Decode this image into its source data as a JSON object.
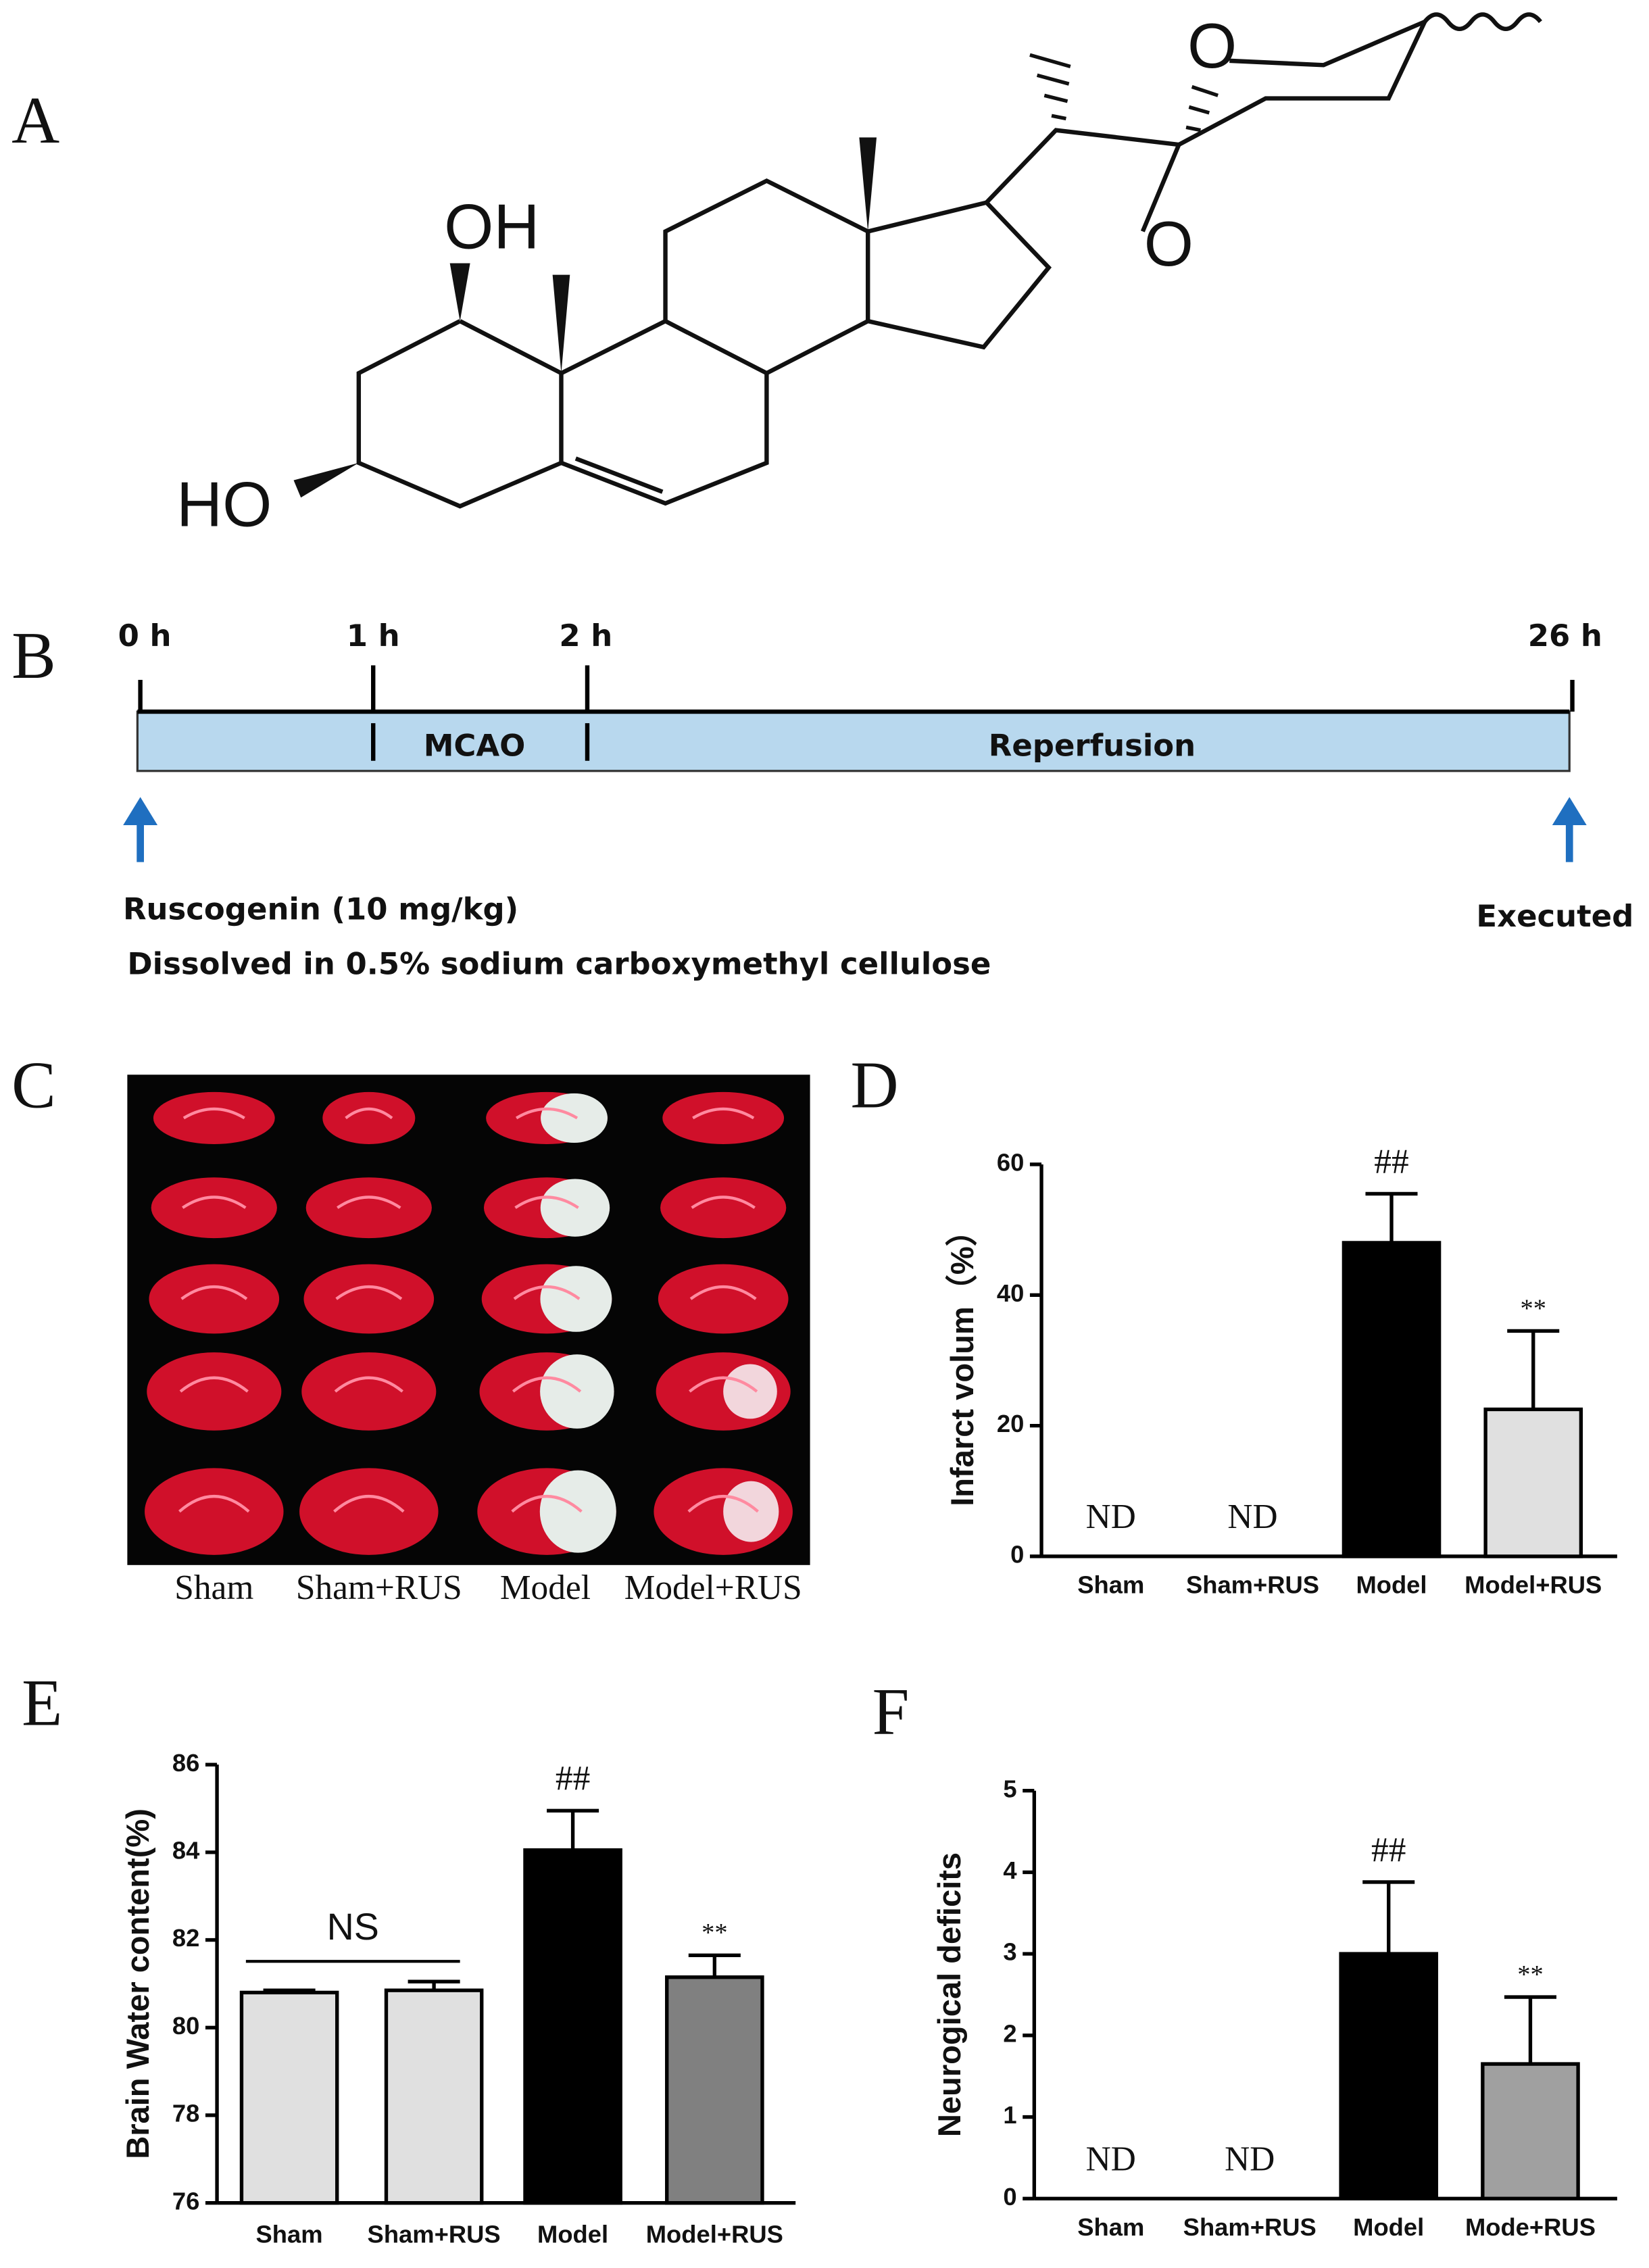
{
  "panel_labels": [
    "A",
    "B",
    "C",
    "D",
    "E",
    "F"
  ],
  "structure": {
    "atoms": [
      "OH",
      "HO",
      "O",
      "O"
    ]
  },
  "timeline": {
    "times": [
      "0 h",
      "1 h",
      "2 h",
      "26 h"
    ],
    "phases": [
      "MCAO",
      "Reperfusion"
    ],
    "treatment": "Ruscogenin (10 mg/kg)",
    "vehicle": "Dissolved in 0.5% sodium carboxymethyl cellulose",
    "end": "Executed"
  },
  "photo": {
    "groups": [
      "Sham",
      "Sham+RUS",
      "Model",
      "Model+RUS"
    ]
  },
  "chart_data": [
    {
      "type": "bar",
      "y_label": "Infarct volum（%）",
      "categories": [
        "Sham",
        "Sham+RUS",
        "Model",
        "Model+RUS"
      ],
      "values": [
        null,
        null,
        48,
        22.5
      ],
      "errors": [
        null,
        null,
        7.5,
        12
      ],
      "annotations": [
        "ND",
        "ND",
        "##",
        "**"
      ],
      "colors": [
        "#e0e0e0",
        "#e0e0e0",
        "#000000",
        "#e0e0e0"
      ],
      "ylim": [
        0,
        60
      ],
      "yticks": [
        0,
        20,
        40,
        60
      ]
    },
    {
      "type": "bar",
      "y_label": "Brain Water content(%)",
      "categories": [
        "Sham",
        "Sham+RUS",
        "Model",
        "Model+RUS"
      ],
      "values": [
        80.8,
        80.85,
        84.05,
        81.15
      ],
      "errors": [
        0.05,
        0.2,
        0.9,
        0.5
      ],
      "annotations": [
        null,
        null,
        "##",
        "**"
      ],
      "bracket_label": "NS",
      "colors": [
        "#e0e0e0",
        "#e0e0e0",
        "#000000",
        "#808080"
      ],
      "ylim": [
        76,
        86
      ],
      "yticks": [
        76,
        78,
        80,
        82,
        84,
        86
      ]
    },
    {
      "type": "bar",
      "y_label": "Neurogical deficits",
      "categories": [
        "Sham",
        "Sham+RUS",
        "Model",
        "Mode+RUS"
      ],
      "values": [
        null,
        null,
        3,
        1.65
      ],
      "errors": [
        null,
        null,
        0.88,
        0.82
      ],
      "annotations": [
        "ND",
        "ND",
        "##",
        "**"
      ],
      "colors": [
        "#e0e0e0",
        "#e0e0e0",
        "#000000",
        "#a0a0a0"
      ],
      "ylim": [
        0,
        5
      ],
      "yticks": [
        0,
        1,
        2,
        3,
        4,
        5
      ]
    }
  ]
}
